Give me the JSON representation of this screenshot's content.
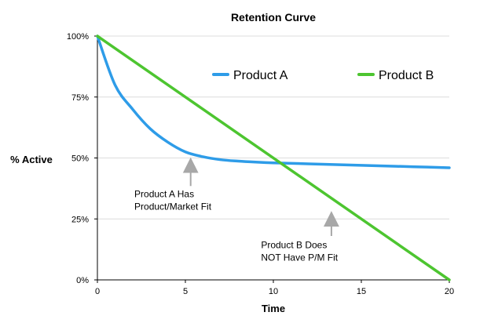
{
  "chart_data": {
    "type": "line",
    "title": "Retention Curve",
    "xlabel": "Time",
    "ylabel": "% Active",
    "xlim": [
      0,
      20
    ],
    "ylim": [
      0,
      100
    ],
    "xticks": [
      0,
      5,
      10,
      15,
      20
    ],
    "xtick_labels": [
      "0",
      "5",
      "10",
      "15",
      "20"
    ],
    "yticks": [
      0,
      25,
      50,
      75,
      100
    ],
    "ytick_labels": [
      "0%",
      "25%",
      "50%",
      "75%",
      "100%"
    ],
    "grid": true,
    "legend": "top",
    "series": [
      {
        "name": "Product A",
        "color": "#2E9CE8",
        "x": [
          0,
          1,
          2,
          3,
          4,
          5,
          6,
          7,
          8,
          9,
          10,
          12,
          14,
          16,
          18,
          20
        ],
        "y": [
          100,
          80,
          70,
          62,
          56.5,
          52.5,
          50.5,
          49.3,
          48.7,
          48.3,
          48,
          47.6,
          47.2,
          46.8,
          46.4,
          46
        ]
      },
      {
        "name": "Product B",
        "color": "#4DC530",
        "x": [
          0,
          20
        ],
        "y": [
          100,
          0
        ]
      }
    ],
    "annotations": [
      {
        "lines": [
          "Product A Has",
          "Product/Market Fit"
        ],
        "arrow_x": 5.3,
        "arrow_from_y": 38.5,
        "arrow_to_y": 48,
        "text_x": 2.1,
        "text_y": 34
      },
      {
        "lines": [
          "Product B Does",
          "NOT Have P/M Fit"
        ],
        "arrow_x": 13.3,
        "arrow_from_y": 18,
        "arrow_to_y": 26,
        "text_x": 9.3,
        "text_y": 13
      }
    ]
  }
}
